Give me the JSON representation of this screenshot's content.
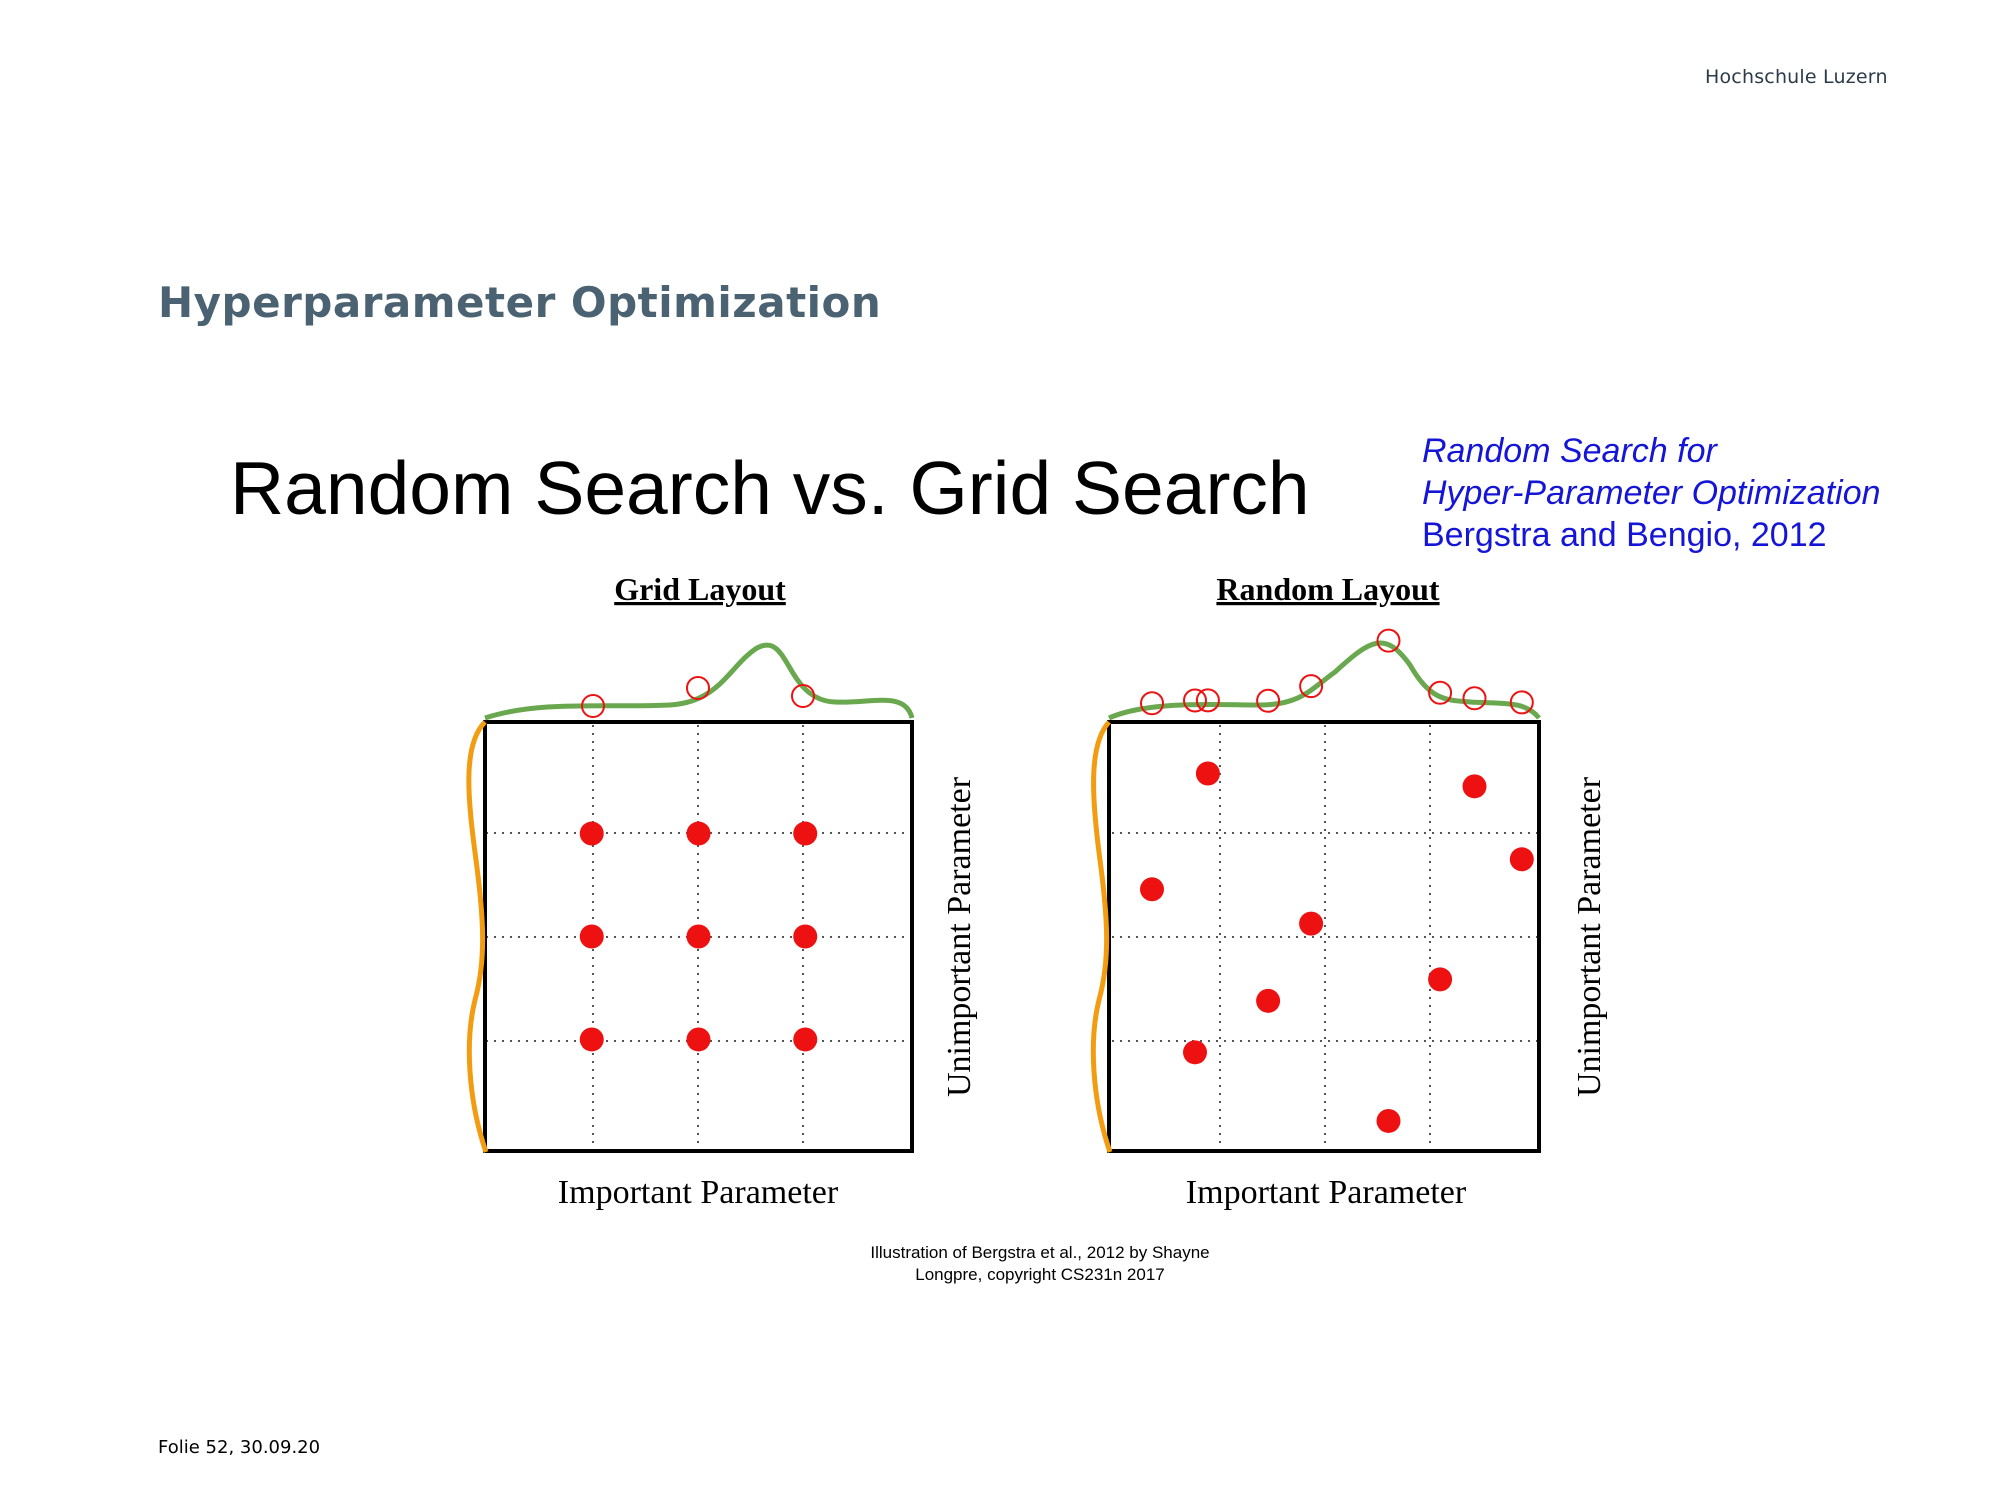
{
  "brand": "Hochschule Luzern",
  "section_title": "Hyperparameter Optimization",
  "main_title": "Random Search vs. Grid Search",
  "reference": {
    "line1": "Random Search for",
    "line2": "Hyper-Parameter Optimization",
    "line3": "Bergstra and Bengio, 2012"
  },
  "panels": [
    {
      "title": "Grid Layout",
      "x_label": "Important Parameter",
      "y_label": "Unimportant Parameter",
      "points": [
        [
          0.25,
          0.74
        ],
        [
          0.5,
          0.74
        ],
        [
          0.75,
          0.74
        ],
        [
          0.25,
          0.5
        ],
        [
          0.5,
          0.5
        ],
        [
          0.75,
          0.5
        ],
        [
          0.25,
          0.26
        ],
        [
          0.5,
          0.26
        ],
        [
          0.75,
          0.26
        ]
      ]
    },
    {
      "title": "Random Layout",
      "x_label": "Important Parameter",
      "y_label": "Unimportant Parameter",
      "points": [
        [
          0.23,
          0.88
        ],
        [
          0.85,
          0.85
        ],
        [
          0.96,
          0.68
        ],
        [
          0.1,
          0.61
        ],
        [
          0.47,
          0.53
        ],
        [
          0.37,
          0.35
        ],
        [
          0.77,
          0.4
        ],
        [
          0.2,
          0.23
        ],
        [
          0.65,
          0.07
        ]
      ]
    }
  ],
  "credit": {
    "line1": "Illustration of Bergstra et al., 2012 by Shayne",
    "line2": "Longpre, copyright CS231n 2017"
  },
  "footer": {
    "label": "Folie",
    "slide_number": "52,",
    "date": "30.09.20"
  },
  "colors": {
    "point": "#ee1111",
    "top_curve": "#6aa84f",
    "side_curve": "#f39c12",
    "title_blue": "#4a6272",
    "reference_blue": "#1515d8"
  }
}
